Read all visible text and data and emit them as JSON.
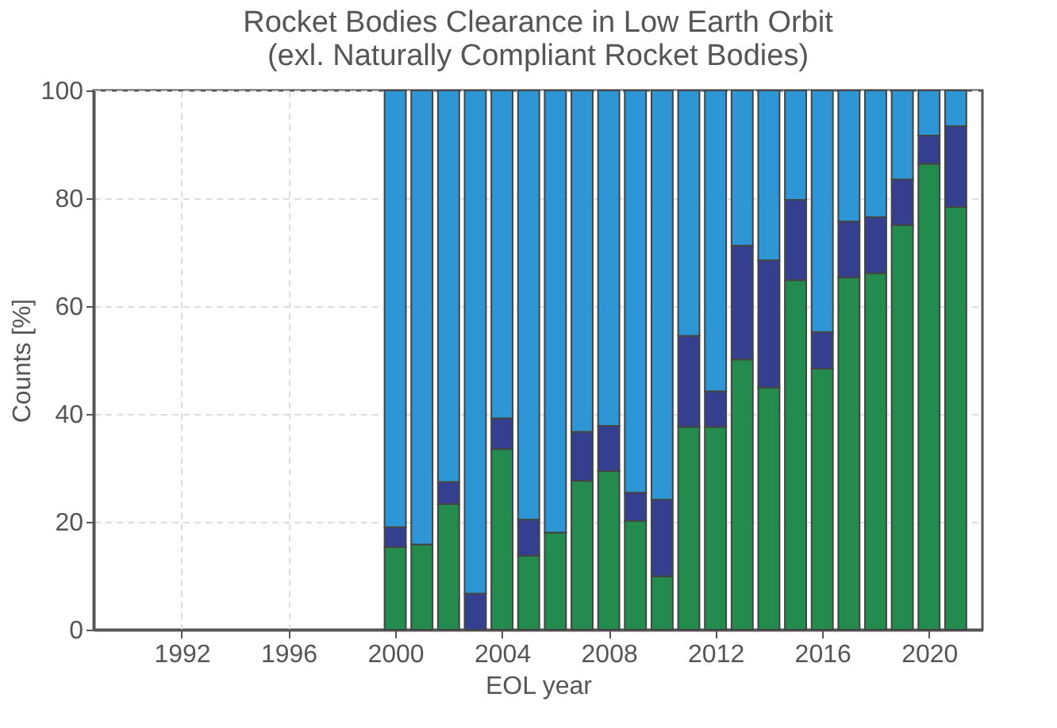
{
  "chart_data": {
    "type": "bar",
    "stacked": true,
    "title": "Rocket Bodies Clearance in Low Earth Orbit\n(exl. Naturally Compliant Rocket Bodies)",
    "xlabel": "EOL year",
    "ylabel": "Counts [%]",
    "x": [
      2000,
      2001,
      2002,
      2003,
      2004,
      2005,
      2006,
      2007,
      2008,
      2009,
      2010,
      2011,
      2012,
      2013,
      2014,
      2015,
      2016,
      2017,
      2018,
      2019,
      2020,
      2021
    ],
    "series": [
      {
        "color": "#238b4e",
        "values": [
          15.3,
          15.8,
          23.3,
          0,
          33.5,
          13.7,
          18.0,
          27.6,
          29.4,
          20.2,
          9.9,
          37.6,
          37.6,
          50.1,
          44.9,
          64.8,
          48.4,
          65.3,
          66.1,
          75.0,
          86.4,
          78.4
        ]
      },
      {
        "color": "#343f8f",
        "values": [
          3.7,
          0,
          4.1,
          6.7,
          5.7,
          6.7,
          0,
          9.1,
          8.4,
          5.2,
          14.2,
          16.9,
          6.6,
          21.1,
          23.6,
          14.9,
          6.8,
          10.4,
          10.4,
          8.5,
          5.2,
          15.0
        ]
      },
      {
        "color": "#2f96d6",
        "values": [
          81.0,
          84.2,
          72.6,
          93.3,
          60.8,
          79.6,
          82.0,
          63.3,
          62.2,
          74.6,
          75.9,
          45.5,
          55.8,
          28.8,
          31.5,
          20.3,
          44.8,
          24.3,
          23.5,
          16.5,
          8.4,
          6.6
        ]
      }
    ],
    "xlim": [
      1988.7,
      2022
    ],
    "xticks": [
      1992,
      1996,
      2000,
      2004,
      2008,
      2012,
      2016,
      2020
    ],
    "ylim": [
      0,
      100
    ],
    "yticks": [
      0,
      20,
      40,
      60,
      80,
      100
    ],
    "grid": true,
    "legend": false
  }
}
